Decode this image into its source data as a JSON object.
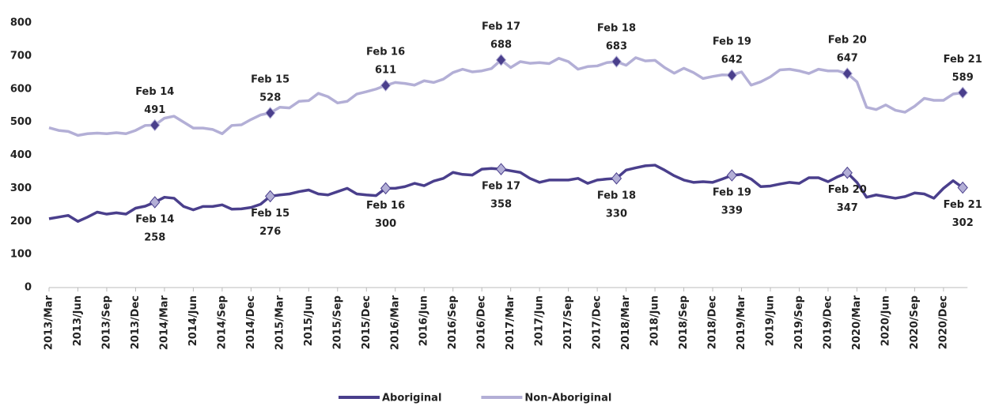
{
  "chart_data": {
    "type": "line",
    "categories": [
      "2013/Mar",
      null,
      null,
      "2013/Jun",
      null,
      null,
      "2013/Sep",
      null,
      null,
      "2013/Dec",
      null,
      null,
      "2014/Mar",
      null,
      null,
      "2014/Jun",
      null,
      null,
      "2014/Sep",
      null,
      null,
      "2014/Dec",
      null,
      null,
      "2015/Mar",
      null,
      null,
      "2015/Jun",
      null,
      null,
      "2015/Sep",
      null,
      null,
      "2015/Dec",
      null,
      null,
      "2016/Mar",
      null,
      null,
      "2016/Jun",
      null,
      null,
      "2016/Sep",
      null,
      null,
      "2016/Dec",
      null,
      null,
      "2017/Mar",
      null,
      null,
      "2017/Jun",
      null,
      null,
      "2017/Sep",
      null,
      null,
      "2017/Dec",
      null,
      null,
      "2018/Mar",
      null,
      null,
      "2018/Jun",
      null,
      null,
      "2018/Sep",
      null,
      null,
      "2018/Dec",
      null,
      null,
      "2019/Mar",
      null,
      null,
      "2019/Jun",
      null,
      null,
      "2019/Sep",
      null,
      null,
      "2019/Dec",
      null,
      null,
      "2020/Mar",
      null,
      null,
      "2020/Jun",
      null,
      null,
      "2020/Sep",
      null,
      null,
      "2020/Dec",
      null,
      null
    ],
    "ylim": [
      0,
      800
    ],
    "yticks": [
      0,
      100,
      200,
      300,
      400,
      500,
      600,
      700,
      800
    ],
    "series": [
      {
        "name": "Aboriginal",
        "color": "#4a3f8c",
        "marker_color": "#b3afd6",
        "values": [
          208,
          213,
          218,
          200,
          213,
          228,
          222,
          226,
          222,
          240,
          246,
          258,
          273,
          270,
          245,
          235,
          245,
          245,
          250,
          237,
          238,
          242,
          252,
          276,
          280,
          283,
          290,
          295,
          283,
          280,
          290,
          300,
          283,
          280,
          278,
          300,
          300,
          305,
          315,
          308,
          322,
          330,
          348,
          342,
          340,
          358,
          360,
          358,
          353,
          348,
          330,
          318,
          325,
          325,
          325,
          330,
          315,
          325,
          328,
          330,
          355,
          362,
          368,
          370,
          355,
          338,
          325,
          318,
          320,
          318,
          328,
          339,
          342,
          328,
          305,
          307,
          313,
          318,
          315,
          332,
          332,
          320,
          335,
          347,
          318,
          273,
          280,
          275,
          270,
          275,
          286,
          283,
          270,
          300,
          323,
          302
        ],
        "point_labels": [
          null,
          null,
          null,
          null,
          null,
          null,
          null,
          null,
          null,
          null,
          null,
          "Feb 14",
          null,
          null,
          null,
          null,
          null,
          null,
          null,
          null,
          null,
          null,
          null,
          "Feb 15",
          null,
          null,
          null,
          null,
          null,
          null,
          null,
          null,
          null,
          null,
          null,
          "Feb 16",
          null,
          null,
          null,
          null,
          null,
          null,
          null,
          null,
          null,
          null,
          null,
          "Feb 17",
          null,
          null,
          null,
          null,
          null,
          null,
          null,
          null,
          null,
          null,
          null,
          "Feb 18",
          null,
          null,
          null,
          null,
          null,
          null,
          null,
          null,
          null,
          null,
          null,
          "Feb 19",
          null,
          null,
          null,
          null,
          null,
          null,
          null,
          null,
          null,
          null,
          null,
          "Feb 20",
          null,
          null,
          null,
          null,
          null,
          null,
          null,
          null,
          null,
          null,
          null,
          "Feb 21"
        ]
      },
      {
        "name": "Non-Aboriginal",
        "color": "#b3afd6",
        "marker_color": "#4a3f8c",
        "values": [
          483,
          475,
          472,
          460,
          465,
          467,
          465,
          468,
          465,
          475,
          490,
          491,
          512,
          518,
          500,
          482,
          482,
          478,
          465,
          490,
          492,
          508,
          522,
          528,
          545,
          543,
          563,
          565,
          587,
          577,
          558,
          563,
          585,
          592,
          600,
          611,
          620,
          617,
          612,
          625,
          620,
          630,
          650,
          660,
          652,
          655,
          662,
          688,
          665,
          683,
          678,
          680,
          677,
          693,
          683,
          660,
          668,
          670,
          680,
          683,
          672,
          695,
          685,
          687,
          665,
          648,
          663,
          650,
          632,
          638,
          643,
          642,
          652,
          612,
          622,
          637,
          658,
          660,
          655,
          647,
          660,
          655,
          655,
          647,
          622,
          545,
          538,
          552,
          536,
          530,
          548,
          572,
          566,
          566,
          585,
          589
        ],
        "point_labels": [
          null,
          null,
          null,
          null,
          null,
          null,
          null,
          null,
          null,
          null,
          null,
          "Feb 14",
          null,
          null,
          null,
          null,
          null,
          null,
          null,
          null,
          null,
          null,
          null,
          "Feb 15",
          null,
          null,
          null,
          null,
          null,
          null,
          null,
          null,
          null,
          null,
          null,
          "Feb 16",
          null,
          null,
          null,
          null,
          null,
          null,
          null,
          null,
          null,
          null,
          null,
          "Feb 17",
          null,
          null,
          null,
          null,
          null,
          null,
          null,
          null,
          null,
          null,
          null,
          "Feb 18",
          null,
          null,
          null,
          null,
          null,
          null,
          null,
          null,
          null,
          null,
          null,
          "Feb 19",
          null,
          null,
          null,
          null,
          null,
          null,
          null,
          null,
          null,
          null,
          null,
          "Feb 20",
          null,
          null,
          null,
          null,
          null,
          null,
          null,
          null,
          null,
          null,
          null,
          "Feb 21"
        ]
      }
    ]
  }
}
